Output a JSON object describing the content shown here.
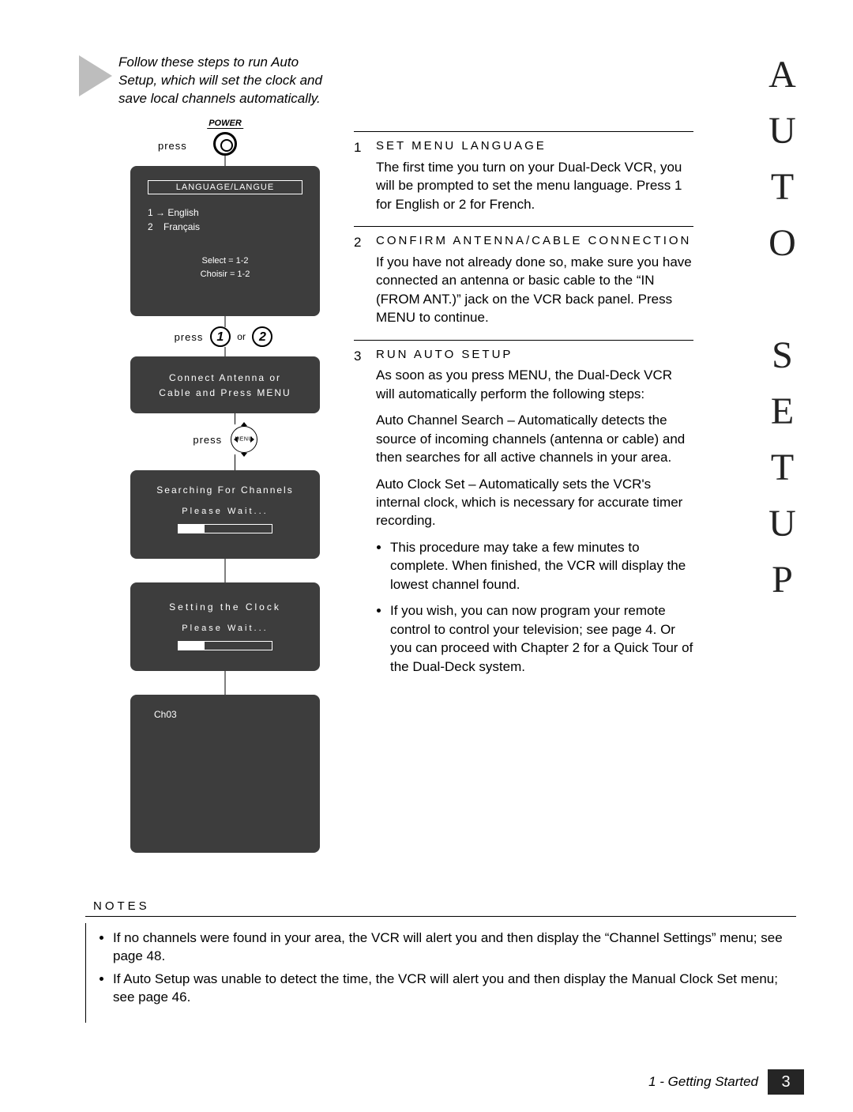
{
  "side_title": "AUTO SETUP",
  "intro": "Follow these steps to run Auto Setup, which will set the clock and save local channels automatically.",
  "diagram": {
    "power_label": "POWER",
    "press": "press",
    "or": "or",
    "btn1": "1",
    "btn2": "2",
    "menu_label": "MENU",
    "screens": {
      "lang": {
        "title": "LANGUAGE/LANGUE",
        "opt1_num": "1",
        "opt1_text": "English",
        "opt2_num": "2",
        "opt2_text": "Français",
        "select": "Select = 1-2",
        "choisir": "Choisir = 1-2"
      },
      "connect": {
        "l1": "Connect Antenna or",
        "l2": "Cable and Press MENU"
      },
      "search": {
        "l1": "Searching For Channels",
        "wait": "Please Wait...",
        "progress_pct": 28
      },
      "clock": {
        "l1": "Setting the Clock",
        "wait": "Please Wait...",
        "progress_pct": 28
      },
      "final": {
        "ch": "Ch03"
      }
    }
  },
  "steps": [
    {
      "num": "1",
      "title": "SET MENU LANGUAGE",
      "paras": [
        "The first time you turn on your Dual-Deck VCR, you will be prompted to set the menu language. Press 1 for English or 2 for French."
      ],
      "bullets": []
    },
    {
      "num": "2",
      "title": "CONFIRM ANTENNA/CABLE CONNECTION",
      "paras": [
        "If you have not already done so, make sure you have connected an antenna or basic cable to the “IN (FROM ANT.)” jack on the VCR back panel. Press MENU to continue."
      ],
      "bullets": []
    },
    {
      "num": "3",
      "title": "RUN AUTO SETUP",
      "paras": [
        "As soon as you press MENU, the Dual-Deck VCR will automatically perform the following steps:",
        "Auto Channel Search – Automatically detects the source of incoming channels (antenna or cable) and then searches for all active channels in your area.",
        "Auto Clock Set – Automatically sets the VCR's internal clock, which is necessary for accurate timer recording."
      ],
      "bullets": [
        "This procedure may take a few minutes to complete. When finished, the VCR will display the lowest channel found.",
        "If you wish, you can now program your remote control to control your television; see page 4. Or you can proceed with Chapter 2 for a Quick Tour of the Dual-Deck system."
      ]
    }
  ],
  "notes": {
    "title": "NOTES",
    "items": [
      "If no channels were found in your area, the VCR will alert you and then display the “Channel Settings” menu; see page 48.",
      "If Auto Setup was unable to detect the time, the VCR will alert you and then display the Manual Clock Set menu; see page 46."
    ]
  },
  "footer": {
    "chapter": "1 - Getting Started",
    "page": "3"
  },
  "colors": {
    "screen_bg": "#3d3d3d",
    "triangle": "#bdbdbd",
    "footer_bg": "#252525"
  }
}
